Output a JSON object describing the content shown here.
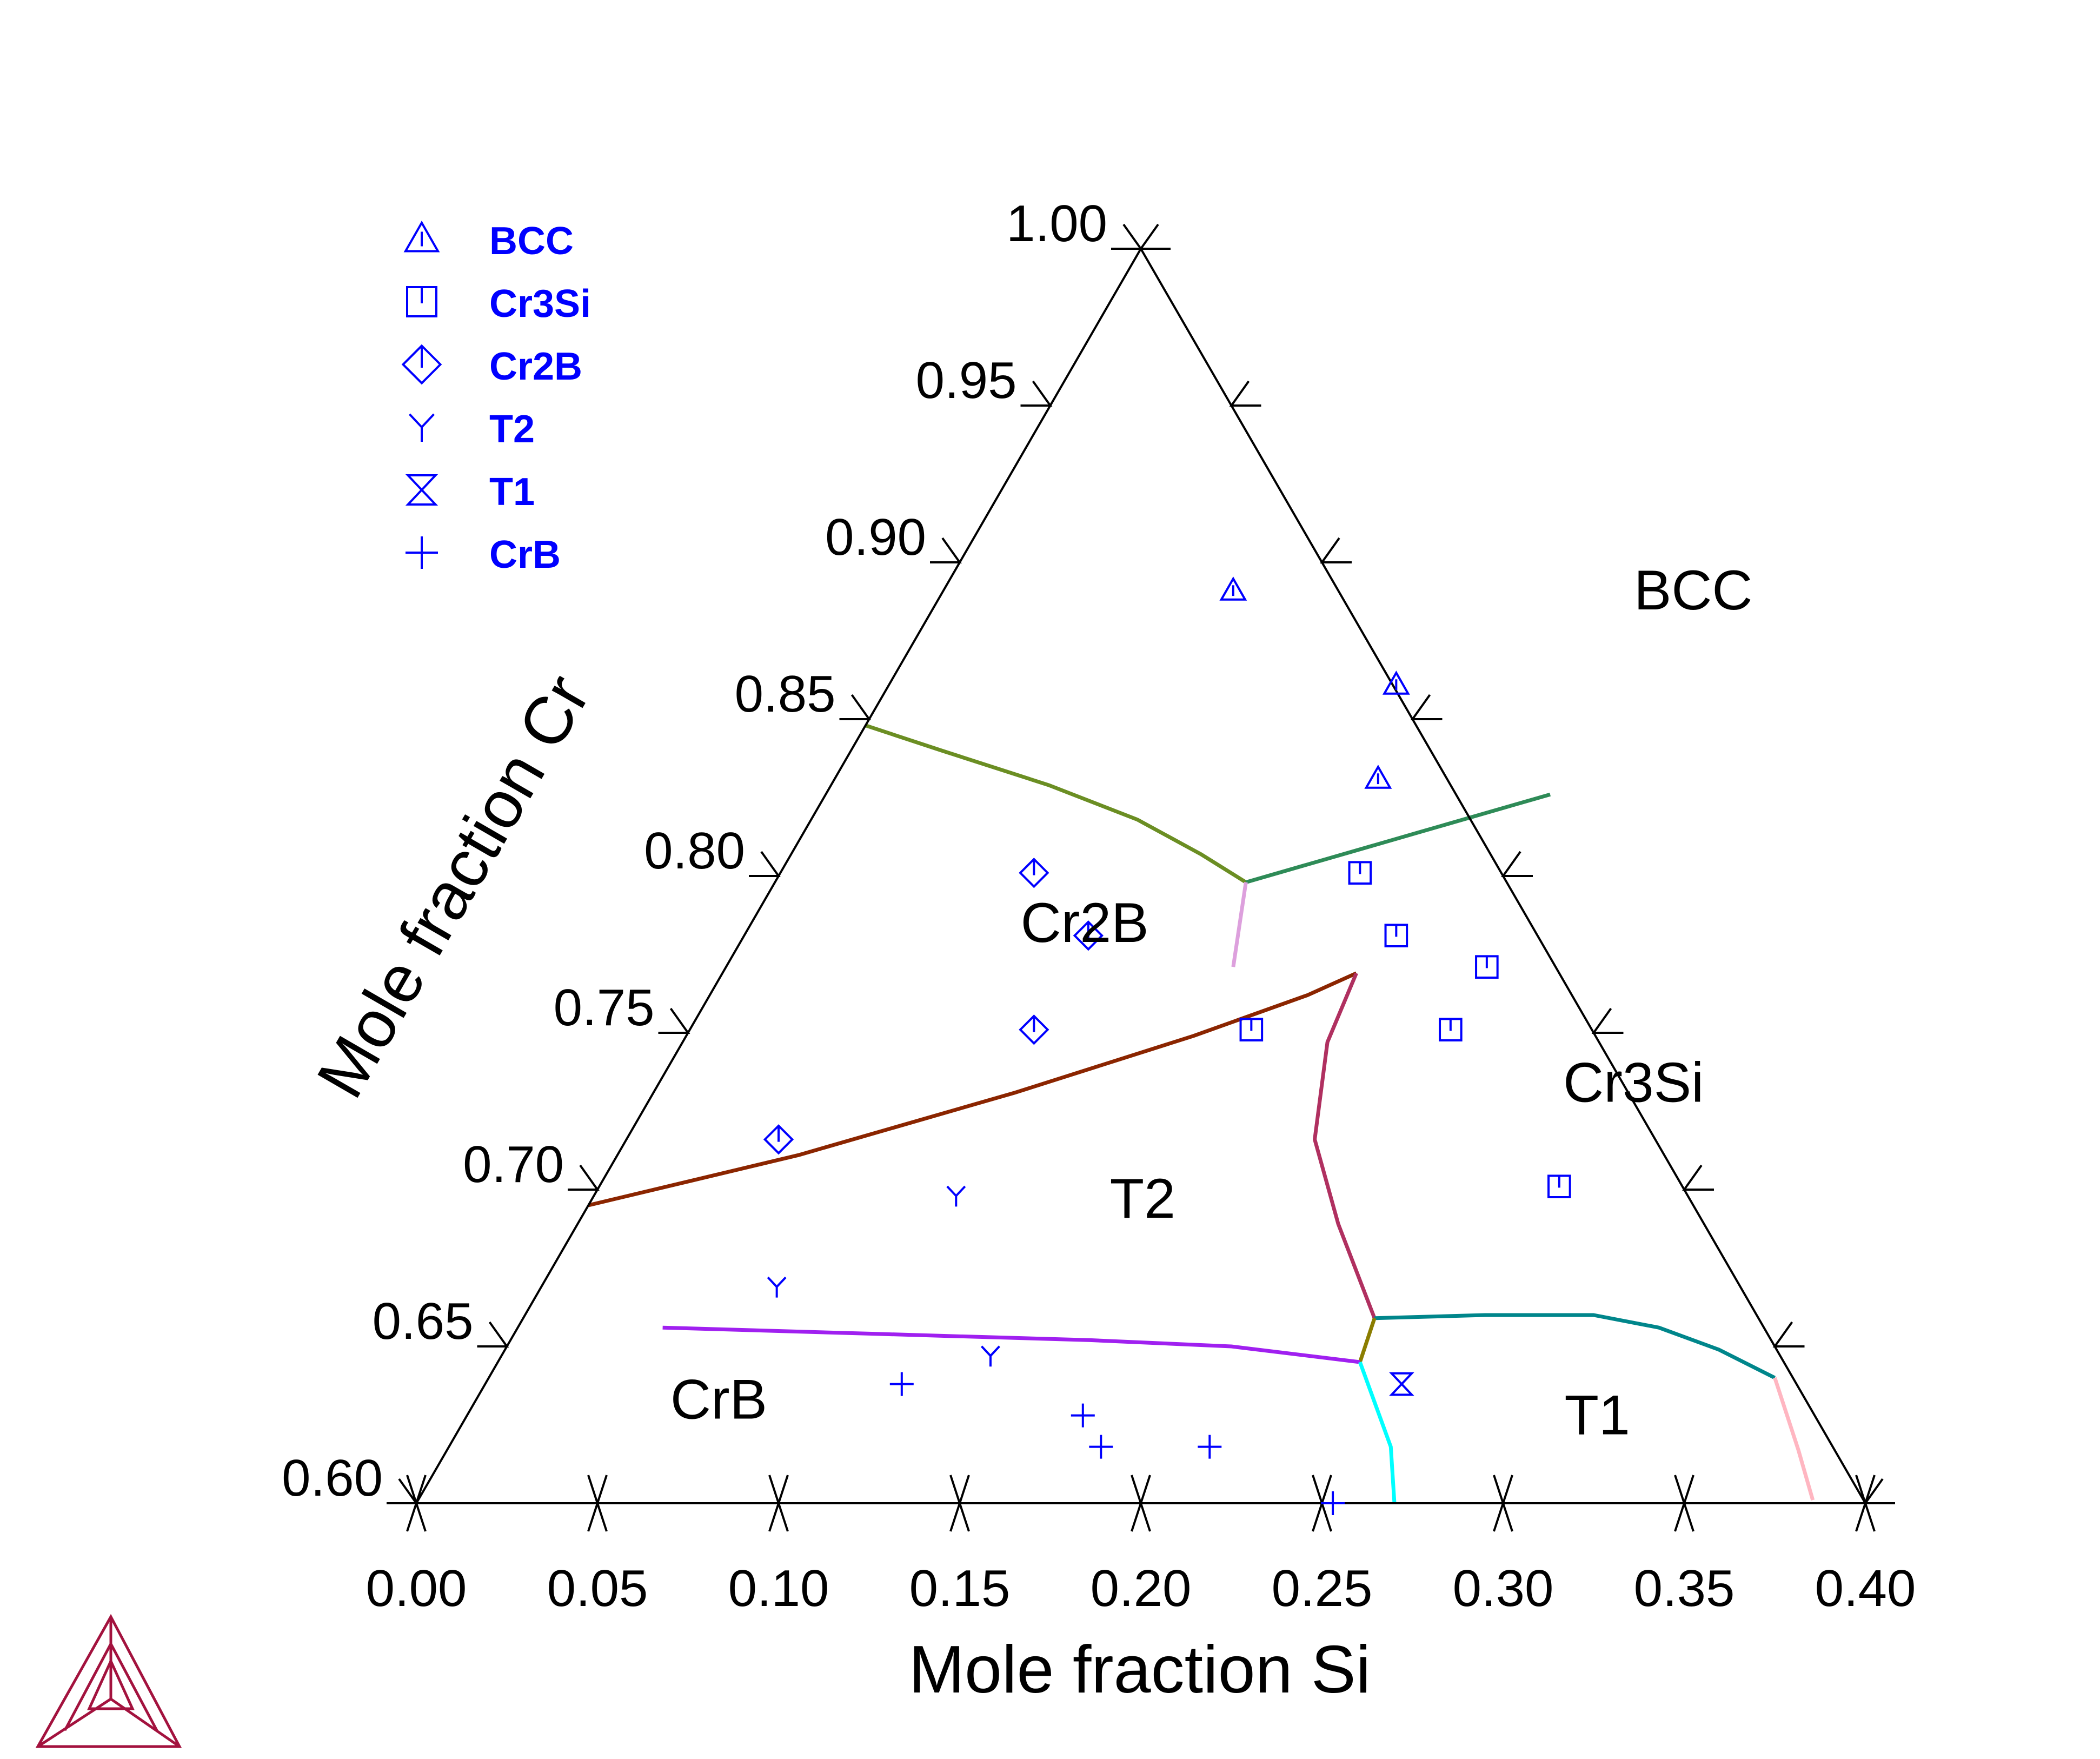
{
  "colors": {
    "marker": "#0000ff",
    "legend_text": "#0000ff",
    "frame": "#000000",
    "logo": "#a3123e"
  },
  "chart_data": {
    "type": "scatter",
    "subtype": "ternary-isothermal-section",
    "xlabel": "Mole fraction Si",
    "ylabel": "Mole fraction Cr",
    "xlim": [
      0.0,
      0.4
    ],
    "ylim": [
      0.6,
      1.0
    ],
    "x_ticks": [
      "0.00",
      "0.05",
      "0.10",
      "0.15",
      "0.20",
      "0.25",
      "0.30",
      "0.35",
      "0.40"
    ],
    "y_ticks": [
      "0.60",
      "0.65",
      "0.70",
      "0.75",
      "0.80",
      "0.85",
      "0.90",
      "0.95",
      "1.00"
    ],
    "legend_position": "top-left",
    "legend": [
      {
        "label": "BCC",
        "marker": "triangle"
      },
      {
        "label": "Cr3Si",
        "marker": "square"
      },
      {
        "label": "Cr2B",
        "marker": "diamond"
      },
      {
        "label": "T2",
        "marker": "y"
      },
      {
        "label": "T1",
        "marker": "hourglass"
      },
      {
        "label": "CrB",
        "marker": "plus"
      }
    ],
    "regions": [
      {
        "label": "BCC",
        "x": 0.21,
        "y": 0.885
      },
      {
        "label": "Cr2B",
        "x": 0.095,
        "y": 0.779
      },
      {
        "label": "Cr3Si",
        "x": 0.272,
        "y": 0.728
      },
      {
        "label": "T2",
        "x": 0.155,
        "y": 0.691
      },
      {
        "label": "CrB",
        "x": 0.07,
        "y": 0.627
      },
      {
        "label": "T1",
        "x": 0.315,
        "y": 0.622
      }
    ],
    "series": [
      {
        "marker": "triangle",
        "points": [
          [
            0.08,
            0.891
          ],
          [
            0.14,
            0.861
          ],
          [
            0.15,
            0.831
          ]
        ]
      },
      {
        "marker": "square",
        "points": [
          [
            0.16,
            0.801
          ],
          [
            0.18,
            0.781
          ],
          [
            0.155,
            0.751
          ],
          [
            0.21,
            0.771
          ],
          [
            0.21,
            0.751
          ],
          [
            0.265,
            0.701
          ]
        ]
      },
      {
        "marker": "diamond",
        "points": [
          [
            0.07,
            0.801
          ],
          [
            0.095,
            0.781
          ],
          [
            0.095,
            0.751
          ],
          [
            0.042,
            0.716
          ]
        ]
      },
      {
        "marker": "y",
        "points": [
          [
            0.1,
            0.698
          ],
          [
            0.065,
            0.669
          ],
          [
            0.135,
            0.647
          ]
        ]
      },
      {
        "marker": "hourglass",
        "points": [
          [
            0.253,
            0.638
          ]
        ]
      },
      {
        "marker": "plus",
        "points": [
          [
            0.115,
            0.638
          ],
          [
            0.17,
            0.628
          ],
          [
            0.18,
            0.618
          ],
          [
            0.21,
            0.618
          ],
          [
            0.253,
            0.6
          ]
        ]
      }
    ],
    "boundaries": [
      {
        "color": "#6b8e23",
        "points": [
          [
            0.0,
            0.848
          ],
          [
            0.025,
            0.84
          ],
          [
            0.06,
            0.829
          ],
          [
            0.09,
            0.818
          ],
          [
            0.113,
            0.807
          ],
          [
            0.13,
            0.798
          ]
        ]
      },
      {
        "color": "#2e8b57",
        "points": [
          [
            0.13,
            0.798
          ],
          [
            0.17,
            0.814
          ],
          [
            0.19,
            0.822
          ],
          [
            0.2,
            0.826
          ]
        ]
      },
      {
        "color": "#dda0dd",
        "points": [
          [
            0.13,
            0.798
          ],
          [
            0.14,
            0.771
          ]
        ]
      },
      {
        "color": "#8b2500",
        "points": [
          [
            0.0,
            0.695
          ],
          [
            0.05,
            0.711
          ],
          [
            0.1,
            0.731
          ],
          [
            0.14,
            0.749
          ],
          [
            0.165,
            0.762
          ],
          [
            0.175,
            0.769
          ]
        ]
      },
      {
        "color": "#b03060",
        "points": [
          [
            0.175,
            0.769
          ],
          [
            0.178,
            0.747
          ],
          [
            0.19,
            0.716
          ],
          [
            0.21,
            0.689
          ],
          [
            0.235,
            0.659
          ]
        ]
      },
      {
        "color": "#00868b",
        "points": [
          [
            0.235,
            0.659
          ],
          [
            0.265,
            0.66
          ],
          [
            0.295,
            0.66
          ],
          [
            0.315,
            0.656
          ],
          [
            0.335,
            0.649
          ],
          [
            0.355,
            0.64
          ]
        ]
      },
      {
        "color": "#8b7d00",
        "points": [
          [
            0.235,
            0.659
          ],
          [
            0.238,
            0.645
          ]
        ]
      },
      {
        "color": "#a020f0",
        "points": [
          [
            0.04,
            0.656
          ],
          [
            0.1,
            0.654
          ],
          [
            0.16,
            0.652
          ],
          [
            0.2,
            0.65
          ],
          [
            0.238,
            0.645
          ]
        ]
      },
      {
        "color": "#00ffff",
        "points": [
          [
            0.238,
            0.645
          ],
          [
            0.26,
            0.618
          ],
          [
            0.27,
            0.6
          ]
        ]
      },
      {
        "color": "#ffb6c1",
        "points": [
          [
            0.355,
            0.64
          ],
          [
            0.373,
            0.617
          ],
          [
            0.385,
            0.601
          ]
        ]
      }
    ]
  }
}
